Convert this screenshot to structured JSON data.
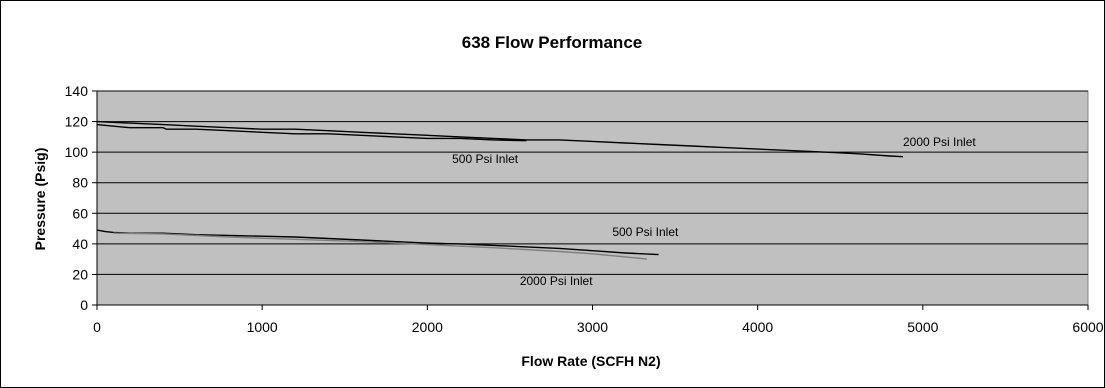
{
  "chart_data": {
    "type": "line",
    "title": "638 Flow Performance",
    "xlabel": "Flow Rate (SCFH N2)",
    "ylabel": "Pressure (Psig)",
    "xlim": [
      0,
      6000
    ],
    "ylim": [
      0,
      140
    ],
    "xticks": [
      "0",
      "1000",
      "2000",
      "3000",
      "4000",
      "5000",
      "6000"
    ],
    "yticks": [
      "0",
      "20",
      "40",
      "60",
      "80",
      "100",
      "120",
      "140"
    ],
    "grid": true,
    "legend": "none",
    "colors": {
      "plot_background": "#c0c0c0",
      "dark_series": "#000000",
      "light_series": "#7f7f7f"
    },
    "series": [
      {
        "name": "2000 Psi Inlet",
        "group": "upper",
        "color": "#000000",
        "x": [
          0,
          200,
          400,
          600,
          800,
          1000,
          1200,
          1400,
          1600,
          1800,
          2000,
          2200,
          2400,
          2600,
          2800,
          3000,
          3200,
          3400,
          3600,
          3800,
          4000,
          4200,
          4400,
          4600,
          4800,
          4880
        ],
        "y": [
          120,
          119,
          118,
          117,
          116,
          115,
          115,
          114,
          113,
          112,
          111,
          110,
          109,
          108,
          108,
          107,
          106,
          105,
          104,
          103,
          102,
          101,
          100,
          99,
          97.5,
          97
        ]
      },
      {
        "name": "500 Psi Inlet",
        "group": "upper",
        "color": "#000000",
        "x": [
          0,
          100,
          200,
          400,
          420,
          600,
          800,
          1000,
          1200,
          1400,
          1600,
          1800,
          2000,
          2200,
          2400,
          2600
        ],
        "y": [
          118,
          117,
          116,
          116,
          115,
          115,
          114,
          113,
          112,
          112,
          111,
          110,
          109,
          109,
          108,
          107.5
        ]
      },
      {
        "name": "500 Psi Inlet",
        "group": "lower",
        "color": "#000000",
        "x": [
          0,
          50,
          100,
          200,
          400,
          600,
          800,
          1000,
          1200,
          1400,
          1600,
          1800,
          2000,
          2200,
          2400,
          2600,
          2800,
          3000,
          3200,
          3400
        ],
        "y": [
          49,
          48,
          47.5,
          47,
          47,
          46,
          45.5,
          45,
          44.5,
          43.5,
          42.5,
          41.5,
          40.5,
          40,
          39,
          38,
          37,
          35.5,
          34,
          33
        ]
      },
      {
        "name": "2000 Psi Inlet",
        "group": "lower",
        "color": "#7f7f7f",
        "x": [
          100,
          400,
          800,
          1200,
          1600,
          2000,
          2400,
          2800,
          3000,
          3200,
          3330
        ],
        "y": [
          47,
          46.5,
          44.5,
          43,
          41.5,
          39.5,
          37.5,
          35,
          33.5,
          31.5,
          30
        ]
      }
    ],
    "annotations": [
      {
        "text": "2000 Psi Inlet",
        "x": 4880,
        "y": 104
      },
      {
        "text": "500 Psi Inlet",
        "x": 2150,
        "y": 93
      },
      {
        "text": "500 Psi Inlet",
        "x": 3120,
        "y": 45
      },
      {
        "text": "2000 Psi Inlet",
        "x": 2560,
        "y": 13
      }
    ]
  }
}
